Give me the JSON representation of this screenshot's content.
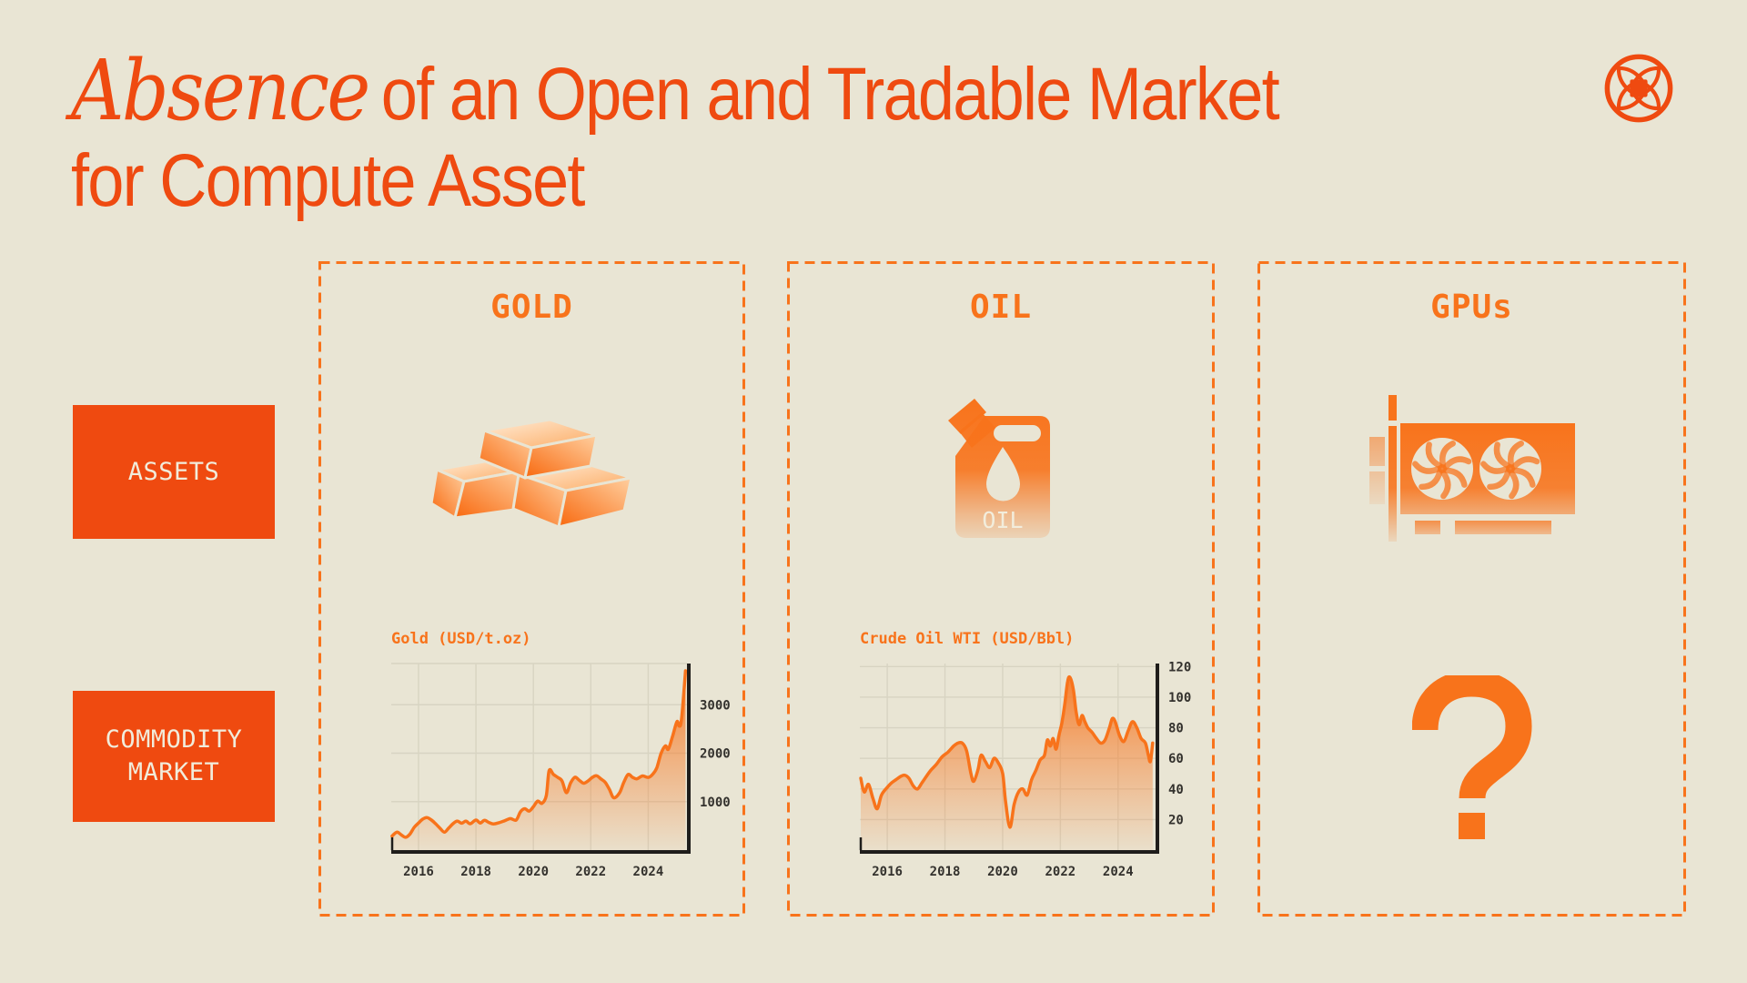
{
  "page": {
    "background": "#E9E5D4",
    "accent": "#F8731B",
    "accent_deep": "#EF4A10",
    "cream_text": "#F1ECDB",
    "axis_color": "#1F1D1B",
    "tick_color": "#33312D",
    "grid_color": "#D8D4C2"
  },
  "header": {
    "title_italic": "Absence",
    "title_rest": "of an Open and Tradable Market",
    "title_line2": "for Compute Asset"
  },
  "icons": {
    "logo": "petal-coin-emblem",
    "gold": "gold-bars",
    "oil": "oil-jerrycan",
    "gpu": "graphics-card-dual-fan",
    "gpu_market": "question-mark"
  },
  "row_labels": {
    "assets": "ASSETS",
    "market_line1": "COMMODITY",
    "market_line2": "MARKET"
  },
  "columns": [
    {
      "title": "GOLD"
    },
    {
      "title": "OIL"
    },
    {
      "title": "GPUs"
    }
  ],
  "oil_icon_text": "OIL",
  "gpu_question": "?",
  "chart_data": [
    {
      "type": "area",
      "title": "Gold (USD/t.oz)",
      "xlabel": "",
      "ylabel": "",
      "xlim": [
        2015.05,
        2025.35
      ],
      "ylim": [
        0,
        3850
      ],
      "xticks": [
        2016,
        2018,
        2020,
        2022,
        2024
      ],
      "yticks": [
        1000,
        2000,
        3000
      ],
      "grid": true,
      "frame_top": true,
      "legend": "none",
      "axis_side": "right",
      "series": [
        {
          "name": "Gold spot price",
          "points": [
            [
              2015.08,
              290
            ],
            [
              2015.25,
              370
            ],
            [
              2015.4,
              315
            ],
            [
              2015.55,
              265
            ],
            [
              2015.7,
              330
            ],
            [
              2015.85,
              470
            ],
            [
              2016.0,
              560
            ],
            [
              2016.15,
              640
            ],
            [
              2016.3,
              670
            ],
            [
              2016.45,
              620
            ],
            [
              2016.6,
              540
            ],
            [
              2016.75,
              450
            ],
            [
              2016.9,
              370
            ],
            [
              2017.05,
              455
            ],
            [
              2017.2,
              545
            ],
            [
              2017.35,
              600
            ],
            [
              2017.5,
              555
            ],
            [
              2017.65,
              600
            ],
            [
              2017.8,
              545
            ],
            [
              2018.0,
              620
            ],
            [
              2018.15,
              560
            ],
            [
              2018.3,
              615
            ],
            [
              2018.45,
              570
            ],
            [
              2018.6,
              540
            ],
            [
              2018.8,
              565
            ],
            [
              2019.0,
              605
            ],
            [
              2019.2,
              650
            ],
            [
              2019.4,
              620
            ],
            [
              2019.55,
              790
            ],
            [
              2019.7,
              855
            ],
            [
              2019.85,
              805
            ],
            [
              2020.0,
              895
            ],
            [
              2020.15,
              1010
            ],
            [
              2020.3,
              965
            ],
            [
              2020.45,
              1125
            ],
            [
              2020.55,
              1640
            ],
            [
              2020.7,
              1560
            ],
            [
              2020.85,
              1500
            ],
            [
              2021.0,
              1425
            ],
            [
              2021.15,
              1185
            ],
            [
              2021.3,
              1390
            ],
            [
              2021.45,
              1505
            ],
            [
              2021.6,
              1440
            ],
            [
              2021.75,
              1380
            ],
            [
              2021.9,
              1425
            ],
            [
              2022.05,
              1500
            ],
            [
              2022.2,
              1535
            ],
            [
              2022.35,
              1470
            ],
            [
              2022.5,
              1400
            ],
            [
              2022.65,
              1250
            ],
            [
              2022.8,
              1080
            ],
            [
              2023.0,
              1180
            ],
            [
              2023.15,
              1400
            ],
            [
              2023.3,
              1560
            ],
            [
              2023.45,
              1505
            ],
            [
              2023.6,
              1470
            ],
            [
              2023.8,
              1530
            ],
            [
              2024.0,
              1500
            ],
            [
              2024.15,
              1560
            ],
            [
              2024.3,
              1700
            ],
            [
              2024.45,
              2000
            ],
            [
              2024.6,
              2150
            ],
            [
              2024.7,
              2080
            ],
            [
              2024.85,
              2350
            ],
            [
              2025.0,
              2650
            ],
            [
              2025.08,
              2560
            ],
            [
              2025.16,
              2700
            ],
            [
              2025.3,
              3700
            ]
          ]
        }
      ]
    },
    {
      "type": "area",
      "title": "Crude Oil WTI (USD/Bbl)",
      "xlabel": "",
      "ylabel": "",
      "xlim": [
        2015.05,
        2025.3
      ],
      "ylim": [
        0,
        122
      ],
      "xticks": [
        2016,
        2018,
        2020,
        2022,
        2024
      ],
      "yticks": [
        20,
        40,
        60,
        80,
        100,
        120
      ],
      "grid": true,
      "frame_top": false,
      "legend": "none",
      "axis_side": "right",
      "series": [
        {
          "name": "WTI crude price",
          "points": [
            [
              2015.08,
              47
            ],
            [
              2015.2,
              38
            ],
            [
              2015.35,
              43
            ],
            [
              2015.5,
              34
            ],
            [
              2015.65,
              27
            ],
            [
              2015.8,
              36
            ],
            [
              2016.0,
              41
            ],
            [
              2016.15,
              44
            ],
            [
              2016.3,
              46
            ],
            [
              2016.45,
              48
            ],
            [
              2016.6,
              49
            ],
            [
              2016.75,
              47
            ],
            [
              2016.9,
              42
            ],
            [
              2017.05,
              40
            ],
            [
              2017.2,
              44
            ],
            [
              2017.35,
              48
            ],
            [
              2017.5,
              52
            ],
            [
              2017.7,
              56
            ],
            [
              2017.9,
              61
            ],
            [
              2018.1,
              64
            ],
            [
              2018.3,
              68
            ],
            [
              2018.45,
              70
            ],
            [
              2018.6,
              70
            ],
            [
              2018.75,
              65
            ],
            [
              2018.9,
              50
            ],
            [
              2019.0,
              45
            ],
            [
              2019.15,
              53
            ],
            [
              2019.25,
              62
            ],
            [
              2019.4,
              58
            ],
            [
              2019.55,
              54
            ],
            [
              2019.7,
              60
            ],
            [
              2019.85,
              57
            ],
            [
              2020.0,
              50
            ],
            [
              2020.1,
              32
            ],
            [
              2020.25,
              15
            ],
            [
              2020.4,
              30
            ],
            [
              2020.55,
              38
            ],
            [
              2020.7,
              40
            ],
            [
              2020.85,
              36
            ],
            [
              2021.0,
              46
            ],
            [
              2021.15,
              52
            ],
            [
              2021.3,
              59
            ],
            [
              2021.45,
              62
            ],
            [
              2021.55,
              72
            ],
            [
              2021.65,
              68
            ],
            [
              2021.75,
              73
            ],
            [
              2021.85,
              66
            ],
            [
              2021.95,
              75
            ],
            [
              2022.05,
              83
            ],
            [
              2022.15,
              95
            ],
            [
              2022.25,
              110
            ],
            [
              2022.33,
              113
            ],
            [
              2022.45,
              105
            ],
            [
              2022.55,
              90
            ],
            [
              2022.65,
              82
            ],
            [
              2022.75,
              88
            ],
            [
              2022.85,
              84
            ],
            [
              2022.95,
              80
            ],
            [
              2023.1,
              77
            ],
            [
              2023.25,
              73
            ],
            [
              2023.4,
              70
            ],
            [
              2023.55,
              72
            ],
            [
              2023.7,
              80
            ],
            [
              2023.8,
              86
            ],
            [
              2023.9,
              84
            ],
            [
              2024.05,
              75
            ],
            [
              2024.2,
              71
            ],
            [
              2024.35,
              78
            ],
            [
              2024.5,
              84
            ],
            [
              2024.65,
              80
            ],
            [
              2024.8,
              73
            ],
            [
              2024.95,
              70
            ],
            [
              2025.05,
              62
            ],
            [
              2025.12,
              58
            ],
            [
              2025.2,
              70
            ]
          ]
        }
      ]
    }
  ]
}
